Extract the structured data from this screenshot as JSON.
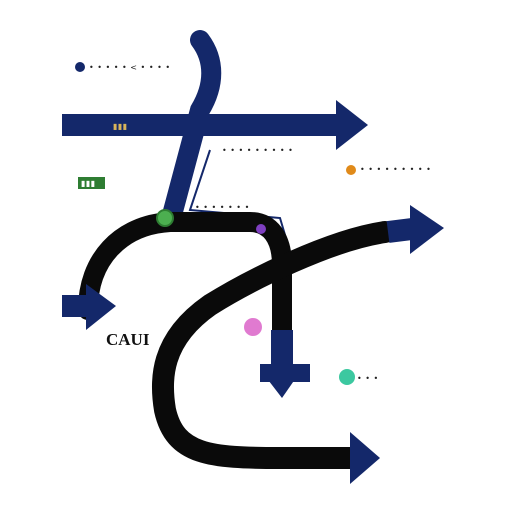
{
  "title": "",
  "colors": {
    "background": "#ffffff",
    "navy": "#14286a",
    "black": "#0a0a0a",
    "green": "#2e7d32",
    "green_dot": "#4caf50",
    "purple_dot": "#7e3fc0",
    "pink_dot": "#e07ad0",
    "teal_dot": "#3cc8a0",
    "orange_dot": "#e08a1a"
  },
  "labels": {
    "top_left": "• • • • • < • • • •",
    "navy_marker": "▮▮▮",
    "center_top": "• • • • • • • • •",
    "right_label": "• • • • • • • • •",
    "green_tag": "▮▮▮",
    "center_mid": "• • • • • • •",
    "city_name": "CAUI",
    "bottom_right": "• • •"
  },
  "icons": {
    "arrowhead": "arrow-right-icon",
    "dot": "node-dot-icon"
  }
}
